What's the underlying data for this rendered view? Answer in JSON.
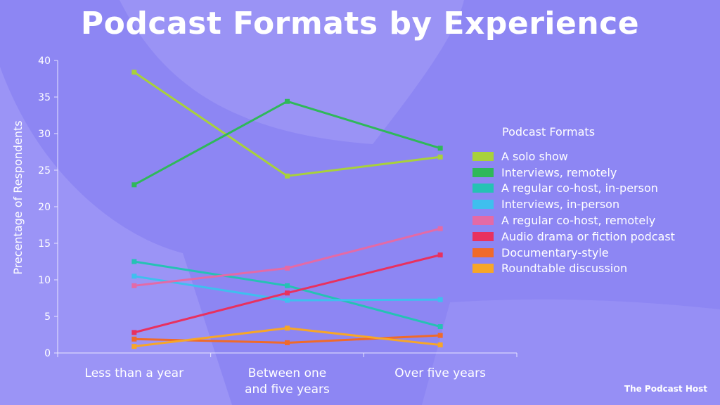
{
  "title": "Podcast Formats by Experience",
  "brand": "The Podcast Host",
  "chart_data": {
    "type": "line",
    "ylabel": "Precentage of Respondents",
    "xlabel": "",
    "ylim": [
      0,
      40
    ],
    "yticks": [
      0,
      5,
      10,
      15,
      20,
      25,
      30,
      35,
      40
    ],
    "categories": [
      [
        "Less than a year"
      ],
      [
        "Between one",
        "and five years"
      ],
      [
        "Over five years"
      ]
    ],
    "legend_title": "Podcast Formats",
    "legend_position": "right",
    "grid": false,
    "series": [
      {
        "name": "A solo show",
        "color": "#a8d13b",
        "values": [
          38.4,
          24.2,
          26.8
        ]
      },
      {
        "name": "Interviews, remotely",
        "color": "#2fb85a",
        "values": [
          23.0,
          34.4,
          28.0
        ]
      },
      {
        "name": "A regular co-host, in-person",
        "color": "#25c2b4",
        "values": [
          12.5,
          9.2,
          3.6
        ]
      },
      {
        "name": "Interviews, in-person",
        "color": "#3fbfee",
        "values": [
          10.5,
          7.2,
          7.3
        ]
      },
      {
        "name": "A regular co-host, remotely",
        "color": "#e46aa6",
        "values": [
          9.2,
          11.6,
          17.0
        ]
      },
      {
        "name": "Audio drama or fiction podcast",
        "color": "#e8315f",
        "values": [
          2.8,
          8.2,
          13.4
        ]
      },
      {
        "name": "Documentary-style",
        "color": "#f06a2a",
        "values": [
          1.9,
          1.4,
          2.4
        ]
      },
      {
        "name": "Roundtable discussion",
        "color": "#f7a628",
        "values": [
          0.9,
          3.4,
          1.1
        ]
      }
    ]
  }
}
